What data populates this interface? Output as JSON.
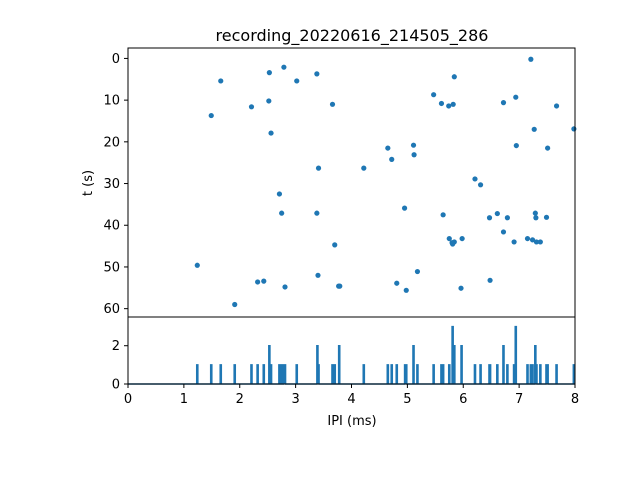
{
  "chart_data": [
    {
      "type": "scatter",
      "title": "recording_20220616_214505_286",
      "xlabel": "",
      "ylabel": "t (s)",
      "xlim": [
        0,
        8
      ],
      "ylim": [
        62,
        -2.5
      ],
      "y_inverted": true,
      "yticks": [
        0,
        10,
        20,
        30,
        40,
        50,
        60
      ],
      "grid": false,
      "marker_color": "#1f77b4",
      "points": [
        [
          1.24,
          49.6
        ],
        [
          1.49,
          13.7
        ],
        [
          1.66,
          5.4
        ],
        [
          1.91,
          59.0
        ],
        [
          2.21,
          11.6
        ],
        [
          2.32,
          53.6
        ],
        [
          2.43,
          53.4
        ],
        [
          2.52,
          10.2
        ],
        [
          2.53,
          3.4
        ],
        [
          2.56,
          17.9
        ],
        [
          2.71,
          32.5
        ],
        [
          2.75,
          37.1
        ],
        [
          2.79,
          2.1
        ],
        [
          2.81,
          54.8
        ],
        [
          3.02,
          5.4
        ],
        [
          3.38,
          37.1
        ],
        [
          3.38,
          3.7
        ],
        [
          3.4,
          52.0
        ],
        [
          3.41,
          26.3
        ],
        [
          3.66,
          11.0
        ],
        [
          3.7,
          44.7
        ],
        [
          3.77,
          54.6
        ],
        [
          3.79,
          54.6
        ],
        [
          4.22,
          26.3
        ],
        [
          4.65,
          21.5
        ],
        [
          4.72,
          24.2
        ],
        [
          4.81,
          53.9
        ],
        [
          4.95,
          35.9
        ],
        [
          4.98,
          55.6
        ],
        [
          5.11,
          20.8
        ],
        [
          5.12,
          23.1
        ],
        [
          5.18,
          51.1
        ],
        [
          5.47,
          8.7
        ],
        [
          5.61,
          10.8
        ],
        [
          5.64,
          37.5
        ],
        [
          5.74,
          11.4
        ],
        [
          5.75,
          43.2
        ],
        [
          5.8,
          44.2
        ],
        [
          5.81,
          44.5
        ],
        [
          5.82,
          11.0
        ],
        [
          5.84,
          44.0
        ],
        [
          5.84,
          4.4
        ],
        [
          5.96,
          55.1
        ],
        [
          5.98,
          43.2
        ],
        [
          6.21,
          28.9
        ],
        [
          6.31,
          30.3
        ],
        [
          6.47,
          38.2
        ],
        [
          6.48,
          53.2
        ],
        [
          6.61,
          37.2
        ],
        [
          6.72,
          10.6
        ],
        [
          6.72,
          41.6
        ],
        [
          6.79,
          38.2
        ],
        [
          6.91,
          44.0
        ],
        [
          6.94,
          9.3
        ],
        [
          6.95,
          20.9
        ],
        [
          7.15,
          43.2
        ],
        [
          7.21,
          0.2
        ],
        [
          7.24,
          43.5
        ],
        [
          7.27,
          17.0
        ],
        [
          7.29,
          37.1
        ],
        [
          7.3,
          38.2
        ],
        [
          7.31,
          44.0
        ],
        [
          7.38,
          44.0
        ],
        [
          7.49,
          38.1
        ],
        [
          7.51,
          21.5
        ],
        [
          7.67,
          11.4
        ],
        [
          7.98,
          16.9
        ]
      ]
    },
    {
      "type": "line",
      "title": "",
      "xlabel": "IPI (ms)",
      "ylabel": "",
      "xlim": [
        0,
        8
      ],
      "ylim": [
        0,
        3.5
      ],
      "xticks": [
        0,
        1,
        2,
        3,
        4,
        5,
        6,
        7,
        8
      ],
      "yticks": [
        0,
        2
      ],
      "grid": false,
      "line_color": "#1f77b4",
      "bin_width": 0.02,
      "peaks": [
        [
          1.24,
          1
        ],
        [
          1.49,
          1
        ],
        [
          1.66,
          1
        ],
        [
          1.91,
          1
        ],
        [
          2.21,
          1
        ],
        [
          2.32,
          1
        ],
        [
          2.43,
          1
        ],
        [
          2.53,
          2
        ],
        [
          2.56,
          1
        ],
        [
          2.71,
          1
        ],
        [
          2.75,
          1
        ],
        [
          2.79,
          1
        ],
        [
          2.81,
          1
        ],
        [
          3.02,
          1
        ],
        [
          3.39,
          2
        ],
        [
          3.41,
          1
        ],
        [
          3.66,
          1
        ],
        [
          3.7,
          1
        ],
        [
          3.78,
          2
        ],
        [
          4.22,
          1
        ],
        [
          4.65,
          1
        ],
        [
          4.72,
          1
        ],
        [
          4.81,
          1
        ],
        [
          4.96,
          1
        ],
        [
          4.98,
          1
        ],
        [
          5.11,
          2
        ],
        [
          5.18,
          1
        ],
        [
          5.47,
          1
        ],
        [
          5.61,
          1
        ],
        [
          5.64,
          1
        ],
        [
          5.75,
          1
        ],
        [
          5.81,
          3
        ],
        [
          5.84,
          2
        ],
        [
          5.97,
          2
        ],
        [
          6.21,
          1
        ],
        [
          6.31,
          1
        ],
        [
          6.47,
          1
        ],
        [
          6.48,
          1
        ],
        [
          6.61,
          1
        ],
        [
          6.72,
          2
        ],
        [
          6.79,
          1
        ],
        [
          6.91,
          1
        ],
        [
          6.94,
          3
        ],
        [
          7.15,
          1
        ],
        [
          7.21,
          1
        ],
        [
          7.24,
          1
        ],
        [
          7.29,
          2
        ],
        [
          7.31,
          1
        ],
        [
          7.38,
          1
        ],
        [
          7.49,
          1
        ],
        [
          7.51,
          1
        ],
        [
          7.67,
          1
        ],
        [
          7.98,
          1
        ]
      ]
    }
  ]
}
